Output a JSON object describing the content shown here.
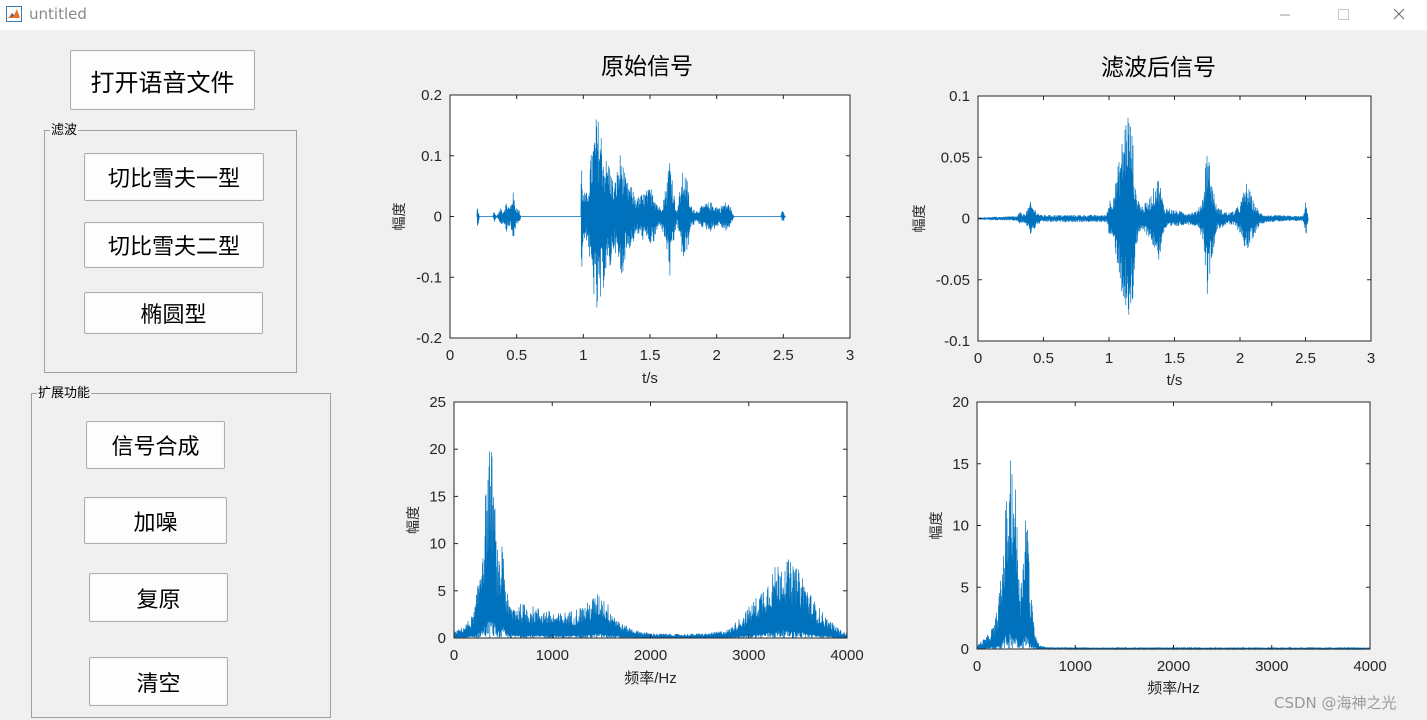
{
  "window": {
    "title": "untitled"
  },
  "buttons": {
    "open_file": "打开语音文件",
    "chebyshev1": "切比雪夫一型",
    "chebyshev2": "切比雪夫二型",
    "elliptic": "椭圆型",
    "synth": "信号合成",
    "add_noise": "加噪",
    "restore": "复原",
    "clear": "清空"
  },
  "panels": {
    "filter": "滤波",
    "extended": "扩展功能"
  },
  "titles": {
    "original": "原始信号",
    "filtered": "滤波后信号"
  },
  "watermark": "CSDN @海神之光",
  "colors": {
    "line": "#0072bd",
    "background": "#f0f0f0",
    "axes": "#ffffff"
  },
  "chart_data": [
    {
      "id": "orig-time",
      "type": "line",
      "title": "原始信号",
      "xlabel": "t/s",
      "ylabel": "幅度",
      "xlim": [
        0,
        3
      ],
      "ylim": [
        -0.2,
        0.2
      ],
      "xticks": [
        0,
        0.5,
        1,
        1.5,
        2,
        2.5,
        3
      ],
      "xticklabels": [
        "0",
        "0.5",
        "1",
        "1.5",
        "2",
        "2.5",
        "3"
      ],
      "yticks": [
        -0.2,
        -0.1,
        0,
        0.1,
        0.2
      ],
      "yticklabels": [
        "-0.2",
        "-0.1",
        "0",
        "0.1",
        "0.2"
      ],
      "x_start": 0.2,
      "x_end": 2.52,
      "envelope": [
        [
          0.2,
          0
        ],
        [
          0.205,
          0.02
        ],
        [
          0.22,
          0
        ],
        [
          0.32,
          0
        ],
        [
          0.33,
          0.01
        ],
        [
          0.35,
          0
        ],
        [
          0.38,
          0.015
        ],
        [
          0.4,
          0.01
        ],
        [
          0.42,
          0.025
        ],
        [
          0.45,
          0.015
        ],
        [
          0.47,
          0.045
        ],
        [
          0.49,
          0.02
        ],
        [
          0.52,
          0.01
        ],
        [
          0.53,
          0
        ],
        [
          0.98,
          0
        ],
        [
          0.985,
          0.1
        ],
        [
          1.0,
          0.04
        ],
        [
          1.03,
          0.04
        ],
        [
          1.05,
          0.09
        ],
        [
          1.1,
          0.17
        ],
        [
          1.13,
          0.15
        ],
        [
          1.16,
          0.1
        ],
        [
          1.2,
          0.09
        ],
        [
          1.23,
          0.05
        ],
        [
          1.28,
          0.11
        ],
        [
          1.32,
          0.06
        ],
        [
          1.36,
          0.05
        ],
        [
          1.4,
          0.03
        ],
        [
          1.45,
          0.04
        ],
        [
          1.52,
          0.05
        ],
        [
          1.56,
          0.02
        ],
        [
          1.58,
          0.015
        ],
        [
          1.62,
          0.05
        ],
        [
          1.65,
          0.11
        ],
        [
          1.68,
          0.04
        ],
        [
          1.7,
          0.01
        ],
        [
          1.75,
          0.08
        ],
        [
          1.78,
          0.06
        ],
        [
          1.8,
          0.02
        ],
        [
          1.85,
          0.01
        ],
        [
          1.9,
          0.02
        ],
        [
          1.95,
          0.025
        ],
        [
          2.02,
          0.015
        ],
        [
          2.06,
          0.025
        ],
        [
          2.1,
          0.02
        ],
        [
          2.12,
          0.005
        ],
        [
          2.13,
          0
        ],
        [
          2.48,
          0
        ],
        [
          2.49,
          0.01
        ],
        [
          2.5,
          0.01
        ],
        [
          2.51,
          0
        ],
        [
          2.52,
          0
        ]
      ]
    },
    {
      "id": "filt-time",
      "type": "line",
      "title": "滤波后信号",
      "xlabel": "t/s",
      "ylabel": "幅度",
      "xlim": [
        0,
        3
      ],
      "ylim": [
        -0.1,
        0.1
      ],
      "xticks": [
        0,
        0.5,
        1,
        1.5,
        2,
        2.5,
        3
      ],
      "xticklabels": [
        "0",
        "0.5",
        "1",
        "1.5",
        "2",
        "2.5",
        "3"
      ],
      "yticks": [
        -0.1,
        -0.05,
        0,
        0.05,
        0.1
      ],
      "yticklabels": [
        "-0.1",
        "-0.05",
        "0",
        "0.05",
        "0.1"
      ],
      "x_start": 0,
      "x_end": 2.52,
      "envelope": [
        [
          0,
          0.001
        ],
        [
          0.3,
          0.002
        ],
        [
          0.32,
          0.006
        ],
        [
          0.34,
          0.003
        ],
        [
          0.38,
          0.008
        ],
        [
          0.4,
          0.014
        ],
        [
          0.42,
          0.01
        ],
        [
          0.45,
          0.006
        ],
        [
          0.48,
          0.003
        ],
        [
          0.5,
          0.003
        ],
        [
          0.98,
          0.003
        ],
        [
          1.0,
          0.015
        ],
        [
          1.03,
          0.02
        ],
        [
          1.05,
          0.03
        ],
        [
          1.1,
          0.065
        ],
        [
          1.14,
          0.095
        ],
        [
          1.18,
          0.07
        ],
        [
          1.2,
          0.025
        ],
        [
          1.25,
          0.01
        ],
        [
          1.3,
          0.015
        ],
        [
          1.38,
          0.035
        ],
        [
          1.42,
          0.01
        ],
        [
          1.5,
          0.007
        ],
        [
          1.6,
          0.005
        ],
        [
          1.68,
          0.007
        ],
        [
          1.72,
          0.02
        ],
        [
          1.75,
          0.065
        ],
        [
          1.78,
          0.035
        ],
        [
          1.82,
          0.01
        ],
        [
          1.9,
          0.005
        ],
        [
          1.95,
          0.006
        ],
        [
          2.0,
          0.012
        ],
        [
          2.05,
          0.03
        ],
        [
          2.1,
          0.015
        ],
        [
          2.15,
          0.005
        ],
        [
          2.2,
          0.003
        ],
        [
          2.48,
          0.002
        ],
        [
          2.5,
          0.015
        ],
        [
          2.52,
          0.001
        ]
      ]
    },
    {
      "id": "orig-freq",
      "type": "line",
      "xlabel": "频率/Hz",
      "ylabel": "幅度",
      "xlim": [
        0,
        4000
      ],
      "ylim": [
        0,
        25
      ],
      "xticks": [
        0,
        1000,
        2000,
        3000,
        4000
      ],
      "xticklabels": [
        "0",
        "1000",
        "2000",
        "3000",
        "4000"
      ],
      "yticks": [
        0,
        5,
        10,
        15,
        20,
        25
      ],
      "yticklabels": [
        "0",
        "5",
        "10",
        "15",
        "20",
        "25"
      ],
      "x_start": 0,
      "x_end": 4000,
      "envelope": [
        [
          0,
          0.6
        ],
        [
          100,
          1.2
        ],
        [
          200,
          2.5
        ],
        [
          250,
          6
        ],
        [
          300,
          12
        ],
        [
          340,
          17
        ],
        [
          370,
          20
        ],
        [
          400,
          18
        ],
        [
          430,
          10
        ],
        [
          470,
          7
        ],
        [
          500,
          12
        ],
        [
          520,
          6
        ],
        [
          560,
          3.5
        ],
        [
          700,
          3.5
        ],
        [
          900,
          3
        ],
        [
          1050,
          2.5
        ],
        [
          1200,
          2.8
        ],
        [
          1350,
          3.5
        ],
        [
          1450,
          4.5
        ],
        [
          1500,
          4.5
        ],
        [
          1600,
          3
        ],
        [
          1700,
          1.5
        ],
        [
          1850,
          0.8
        ],
        [
          2000,
          0.5
        ],
        [
          2300,
          0.4
        ],
        [
          2600,
          0.5
        ],
        [
          2800,
          0.9
        ],
        [
          2950,
          2.5
        ],
        [
          3100,
          4.5
        ],
        [
          3250,
          7
        ],
        [
          3350,
          8.5
        ],
        [
          3450,
          7.5
        ],
        [
          3550,
          6.5
        ],
        [
          3650,
          4
        ],
        [
          3800,
          2
        ],
        [
          3950,
          0.7
        ],
        [
          4000,
          0.5
        ]
      ]
    },
    {
      "id": "filt-freq",
      "type": "line",
      "xlabel": "频率/Hz",
      "ylabel": "幅度",
      "xlim": [
        0,
        4000
      ],
      "ylim": [
        0,
        20
      ],
      "xticks": [
        0,
        1000,
        2000,
        3000,
        4000
      ],
      "xticklabels": [
        "0",
        "1000",
        "2000",
        "3000",
        "4000"
      ],
      "yticks": [
        0,
        5,
        10,
        15,
        20
      ],
      "yticklabels": [
        "0",
        "5",
        "10",
        "15",
        "20"
      ],
      "x_start": 0,
      "x_end": 4000,
      "envelope": [
        [
          0,
          0.3
        ],
        [
          100,
          1
        ],
        [
          180,
          2
        ],
        [
          210,
          3.5
        ],
        [
          250,
          6
        ],
        [
          290,
          11
        ],
        [
          330,
          14
        ],
        [
          360,
          15.5
        ],
        [
          390,
          13
        ],
        [
          420,
          8
        ],
        [
          450,
          5
        ],
        [
          480,
          11
        ],
        [
          510,
          12
        ],
        [
          540,
          5
        ],
        [
          580,
          2
        ],
        [
          620,
          0.5
        ],
        [
          700,
          0.15
        ],
        [
          1000,
          0.1
        ],
        [
          4000,
          0.1
        ]
      ]
    }
  ]
}
